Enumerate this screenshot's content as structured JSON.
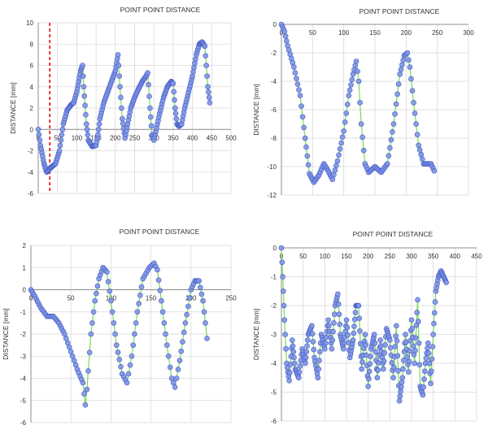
{
  "colors": {
    "grid": "#d9d9d9",
    "axis": "#8c8c8c",
    "marker_fill": "#7f95e6",
    "marker_stroke": "#3f57c4",
    "line": "#7ed957",
    "ref_line": "#e02020"
  },
  "chart_data": [
    {
      "type": "line",
      "title": "POINT POINT DISTANCE",
      "ylabel": "DISTANCE [mm]",
      "xlim": [
        0,
        500
      ],
      "ylim": [
        -6,
        10
      ],
      "xticks": [
        0,
        50,
        100,
        150,
        200,
        250,
        300,
        350,
        400,
        450,
        500
      ],
      "yticks": [
        -6,
        -4,
        -2,
        0,
        2,
        4,
        6,
        8,
        10
      ],
      "grid": true,
      "vertical_reference_x": 30,
      "series": [
        {
          "marker": "circle",
          "keypoints": [
            [
              0,
              0
            ],
            [
              6,
              -1.5
            ],
            [
              15,
              -3.2
            ],
            [
              22,
              -4.0
            ],
            [
              32,
              -3.6
            ],
            [
              45,
              -3.2
            ],
            [
              55,
              -2
            ],
            [
              65,
              0.5
            ],
            [
              75,
              1.8
            ],
            [
              85,
              2.3
            ],
            [
              92,
              2.5
            ],
            [
              100,
              3.5
            ],
            [
              105,
              4.5
            ],
            [
              110,
              5.5
            ],
            [
              115,
              6.0
            ],
            [
              118,
              4.0
            ],
            [
              125,
              0.5
            ],
            [
              130,
              -1.0
            ],
            [
              140,
              -1.6
            ],
            [
              150,
              -1.5
            ],
            [
              155,
              -0.5
            ],
            [
              160,
              1.0
            ],
            [
              170,
              2.5
            ],
            [
              180,
              3.5
            ],
            [
              190,
              4.5
            ],
            [
              200,
              5.5
            ],
            [
              207,
              7.0
            ],
            [
              212,
              4.0
            ],
            [
              218,
              1.0
            ],
            [
              225,
              -0.8
            ],
            [
              232,
              0.5
            ],
            [
              240,
              2.0
            ],
            [
              250,
              3.0
            ],
            [
              260,
              3.8
            ],
            [
              270,
              4.5
            ],
            [
              280,
              5.0
            ],
            [
              284,
              5.3
            ],
            [
              290,
              2.0
            ],
            [
              295,
              -0.5
            ],
            [
              300,
              -1.0
            ],
            [
              305,
              -0.2
            ],
            [
              315,
              1.5
            ],
            [
              325,
              3.0
            ],
            [
              335,
              4.0
            ],
            [
              345,
              4.5
            ],
            [
              350,
              4.3
            ],
            [
              355,
              2.0
            ],
            [
              360,
              0.5
            ],
            [
              365,
              0.3
            ],
            [
              372,
              0.5
            ],
            [
              380,
              2.0
            ],
            [
              390,
              3.5
            ],
            [
              400,
              5.0
            ],
            [
              410,
              7.0
            ],
            [
              418,
              8.0
            ],
            [
              425,
              8.2
            ],
            [
              432,
              7.8
            ],
            [
              436,
              6.0
            ],
            [
              440,
              4.0
            ],
            [
              445,
              2.5
            ]
          ]
        }
      ]
    },
    {
      "type": "line",
      "title": "POINT POINT DISTANCE",
      "ylabel": "DISTANCE [mm]",
      "xlim": [
        0,
        300
      ],
      "ylim": [
        -12,
        0
      ],
      "xticks": [
        0,
        50,
        100,
        150,
        200,
        250,
        300
      ],
      "yticks": [
        -12,
        -10,
        -8,
        -6,
        -4,
        -2,
        0
      ],
      "grid": true,
      "series": [
        {
          "marker": "circle",
          "keypoints": [
            [
              0,
              0
            ],
            [
              5,
              -0.5
            ],
            [
              10,
              -1.5
            ],
            [
              20,
              -3.0
            ],
            [
              30,
              -5.0
            ],
            [
              38,
              -8.0
            ],
            [
              45,
              -10.5
            ],
            [
              52,
              -11.1
            ],
            [
              60,
              -10.6
            ],
            [
              68,
              -9.8
            ],
            [
              75,
              -10.3
            ],
            [
              82,
              -10.9
            ],
            [
              90,
              -9.6
            ],
            [
              100,
              -7.5
            ],
            [
              108,
              -5.0
            ],
            [
              115,
              -3.5
            ],
            [
              120,
              -2.6
            ],
            [
              124,
              -4.0
            ],
            [
              128,
              -7.0
            ],
            [
              134,
              -9.8
            ],
            [
              140,
              -10.4
            ],
            [
              150,
              -10.0
            ],
            [
              160,
              -10.4
            ],
            [
              170,
              -9.8
            ],
            [
              180,
              -7.0
            ],
            [
              190,
              -3.5
            ],
            [
              197,
              -2.2
            ],
            [
              202,
              -2.0
            ],
            [
              206,
              -3.0
            ],
            [
              212,
              -5.5
            ],
            [
              220,
              -8.5
            ],
            [
              228,
              -9.8
            ],
            [
              240,
              -9.8
            ],
            [
              245,
              -10.3
            ]
          ]
        }
      ]
    },
    {
      "type": "line",
      "title": "POINT POINT DISTANCE",
      "ylabel": "DISTANCE [mm]",
      "xlim": [
        0,
        250
      ],
      "ylim": [
        -6,
        2
      ],
      "xticks": [
        0,
        50,
        100,
        150,
        200,
        250
      ],
      "yticks": [
        -6,
        -5,
        -4,
        -3,
        -2,
        -1,
        0,
        1,
        2
      ],
      "grid": true,
      "series": [
        {
          "marker": "circle",
          "keypoints": [
            [
              0,
              0
            ],
            [
              5,
              -0.3
            ],
            [
              12,
              -0.8
            ],
            [
              20,
              -1.2
            ],
            [
              28,
              -1.2
            ],
            [
              35,
              -1.5
            ],
            [
              42,
              -2.0
            ],
            [
              50,
              -2.8
            ],
            [
              58,
              -3.6
            ],
            [
              65,
              -4.2
            ],
            [
              68,
              -5.2
            ],
            [
              70,
              -4.5
            ],
            [
              75,
              -2.0
            ],
            [
              80,
              -0.5
            ],
            [
              85,
              0.5
            ],
            [
              90,
              1.0
            ],
            [
              95,
              0.8
            ],
            [
              100,
              -0.5
            ],
            [
              107,
              -2.5
            ],
            [
              114,
              -3.8
            ],
            [
              120,
              -4.2
            ],
            [
              126,
              -3.0
            ],
            [
              133,
              -1.0
            ],
            [
              140,
              0.5
            ],
            [
              148,
              1.0
            ],
            [
              154,
              1.2
            ],
            [
              158,
              0.9
            ],
            [
              163,
              -0.5
            ],
            [
              170,
              -2.5
            ],
            [
              176,
              -4.0
            ],
            [
              180,
              -4.4
            ],
            [
              186,
              -3.2
            ],
            [
              193,
              -1.5
            ],
            [
              200,
              0.0
            ],
            [
              205,
              0.4
            ],
            [
              210,
              0.4
            ],
            [
              215,
              -0.5
            ],
            [
              218,
              -1.5
            ],
            [
              220,
              -2.2
            ]
          ]
        }
      ]
    },
    {
      "type": "line",
      "title": "POINT POINT DISTANCE",
      "ylabel": "DISTANCE [mm]",
      "xlim": [
        0,
        450
      ],
      "ylim": [
        -6,
        0
      ],
      "xticks": [
        0,
        50,
        100,
        150,
        200,
        250,
        300,
        350,
        400,
        450
      ],
      "yticks": [
        -6,
        -5,
        -4,
        -3,
        -2,
        -1,
        0
      ],
      "grid": true,
      "series": [
        {
          "marker": "circle",
          "keypoints": [
            [
              0,
              0
            ],
            [
              3,
              -1.0
            ],
            [
              7,
              -2.5
            ],
            [
              12,
              -4.0
            ],
            [
              18,
              -4.6
            ],
            [
              25,
              -3.2
            ],
            [
              32,
              -4.2
            ],
            [
              40,
              -4.5
            ],
            [
              48,
              -3.5
            ],
            [
              55,
              -4.0
            ],
            [
              62,
              -3.0
            ],
            [
              70,
              -2.7
            ],
            [
              76,
              -3.8
            ],
            [
              84,
              -4.5
            ],
            [
              92,
              -3.0
            ],
            [
              100,
              -3.5
            ],
            [
              108,
              -2.5
            ],
            [
              116,
              -3.5
            ],
            [
              124,
              -2.0
            ],
            [
              130,
              -1.6
            ],
            [
              136,
              -3.0
            ],
            [
              143,
              -3.5
            ],
            [
              150,
              -2.5
            ],
            [
              158,
              -3.8
            ],
            [
              165,
              -3.2
            ],
            [
              172,
              -2.0
            ],
            [
              178,
              -2.0
            ],
            [
              185,
              -4.2
            ],
            [
              193,
              -3.0
            ],
            [
              200,
              -4.8
            ],
            [
              207,
              -3.5
            ],
            [
              214,
              -3.0
            ],
            [
              221,
              -4.5
            ],
            [
              228,
              -3.2
            ],
            [
              235,
              -4.2
            ],
            [
              242,
              -2.8
            ],
            [
              250,
              -3.2
            ],
            [
              258,
              -4.5
            ],
            [
              265,
              -2.7
            ],
            [
              272,
              -5.3
            ],
            [
              279,
              -4.5
            ],
            [
              286,
              -3.0
            ],
            [
              293,
              -4.3
            ],
            [
              300,
              -2.5
            ],
            [
              307,
              -4.0
            ],
            [
              314,
              -1.8
            ],
            [
              320,
              -4.8
            ],
            [
              326,
              -5.1
            ],
            [
              332,
              -4.0
            ],
            [
              338,
              -3.3
            ],
            [
              344,
              -4.7
            ],
            [
              350,
              -3.0
            ],
            [
              356,
              -1.5
            ],
            [
              362,
              -1.0
            ],
            [
              368,
              -0.8
            ],
            [
              374,
              -1.0
            ],
            [
              380,
              -1.2
            ]
          ]
        }
      ]
    }
  ]
}
